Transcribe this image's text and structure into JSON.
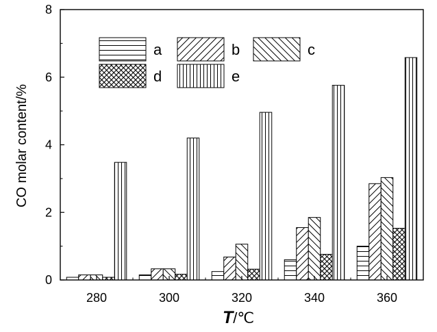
{
  "chart_data": {
    "type": "bar",
    "title": "",
    "ylabel": "CO molar content/%",
    "xlabel_italic": "T",
    "xlabel_unit": "/℃",
    "categories": [
      "280",
      "300",
      "320",
      "340",
      "360"
    ],
    "ylim": [
      0,
      8
    ],
    "yticks": [
      "0",
      "2",
      "4",
      "6",
      "8"
    ],
    "legend_position": "top-left inside plot",
    "grid": false,
    "series": [
      {
        "name": "a",
        "pattern": "horizontal",
        "values": [
          0.08,
          0.15,
          0.25,
          0.6,
          1.0
        ]
      },
      {
        "name": "b",
        "pattern": "diagonal-up",
        "values": [
          0.15,
          0.33,
          0.68,
          1.55,
          2.85
        ]
      },
      {
        "name": "c",
        "pattern": "diagonal-down",
        "values": [
          0.15,
          0.33,
          1.06,
          1.85,
          3.03
        ]
      },
      {
        "name": "d",
        "pattern": "crosshatch",
        "values": [
          0.08,
          0.17,
          0.32,
          0.76,
          1.53
        ]
      },
      {
        "name": "e",
        "pattern": "vertical",
        "values": [
          3.48,
          4.2,
          4.96,
          5.76,
          6.58
        ]
      }
    ]
  }
}
